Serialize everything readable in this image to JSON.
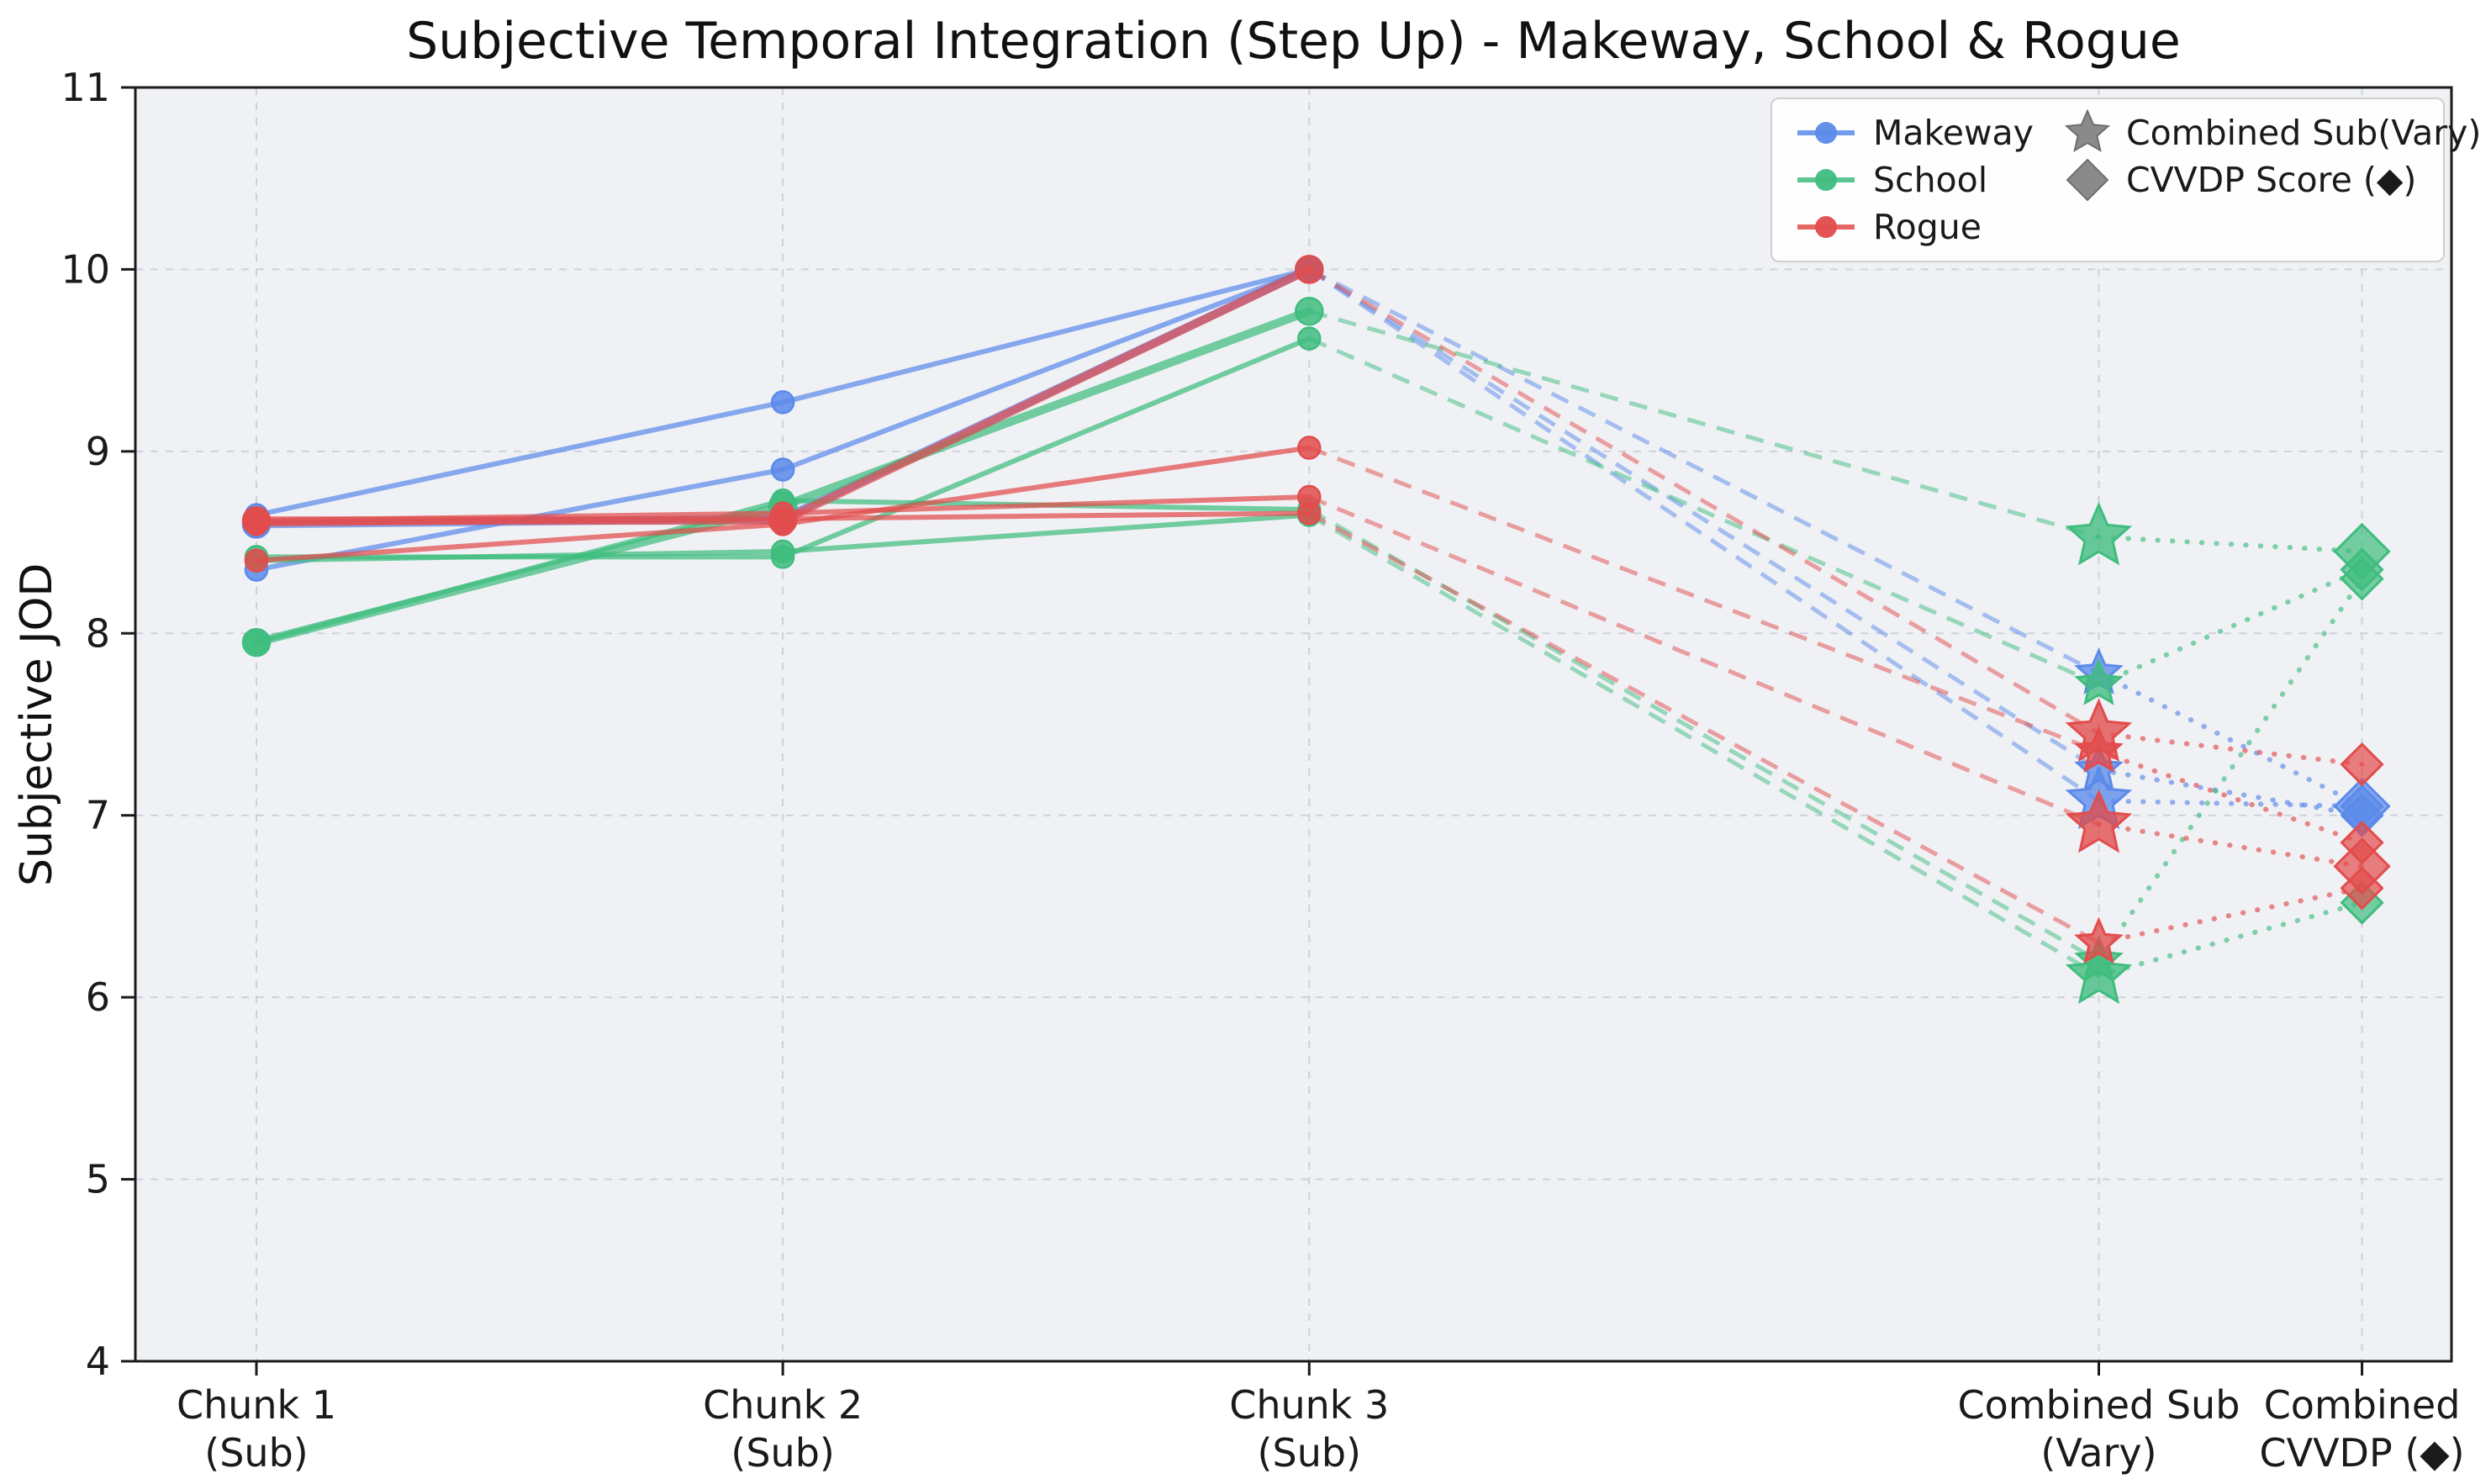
{
  "chart_data": {
    "type": "line",
    "title": "Subjective Temporal Integration (Step Up) - Makeway, School & Rogue",
    "ylabel": "Subjective JOD",
    "ylim": [
      4,
      11
    ],
    "yticks": [
      4,
      5,
      6,
      7,
      8,
      9,
      10,
      11
    ],
    "x_positions": [
      0,
      1,
      2,
      3.5,
      4
    ],
    "xlim": [
      -0.23,
      4.17
    ],
    "xtick_labels": [
      [
        "Chunk 1",
        "(Sub)"
      ],
      [
        "Chunk 2",
        "(Sub)"
      ],
      [
        "Chunk 3",
        "(Sub)"
      ],
      [
        "Combined Sub",
        "(Vary)"
      ],
      [
        "Combined",
        "CVVDP (◆)"
      ]
    ],
    "grid": true,
    "plot_background": "#f0f1f5",
    "grid_color": "#cdd1da",
    "legend": {
      "position": "upper right",
      "series_entries": [
        {
          "label": "Makeway",
          "color": "#5b8aea",
          "marker": "circle-line"
        },
        {
          "label": "School",
          "color": "#3fbd7e",
          "marker": "circle-line"
        },
        {
          "label": "Rogue",
          "color": "#e24c4c",
          "marker": "circle-line"
        }
      ],
      "marker_entries": [
        {
          "label": "Combined Sub(Vary)",
          "marker": "star",
          "color": "#8a8a8a"
        },
        {
          "label": "CVVDP Score (◆)",
          "marker": "diamond",
          "color": "#8a8a8a"
        }
      ]
    },
    "series": [
      {
        "name": "Makeway",
        "color": "#5b8aea",
        "lines": [
          {
            "chunks": [
              8.65,
              9.27,
              10.0
            ],
            "combined_sub": 7.78,
            "cvvdp": 7.05,
            "thick": false,
            "big_star": false,
            "big_diamond": false
          },
          {
            "chunks": [
              8.35,
              8.9,
              10.0
            ],
            "combined_sub": 7.25,
            "cvvdp": 7.0,
            "thick": false,
            "big_star": false,
            "big_diamond": false
          },
          {
            "chunks": [
              8.6,
              8.63,
              10.0
            ],
            "combined_sub": 7.08,
            "cvvdp": 7.05,
            "thick": true,
            "big_star": true,
            "big_diamond": true
          }
        ]
      },
      {
        "name": "School",
        "color": "#3fbd7e",
        "lines": [
          {
            "chunks": [
              7.95,
              8.7,
              9.77
            ],
            "combined_sub": 8.53,
            "cvvdp": 8.45,
            "thick": true,
            "big_star": true,
            "big_diamond": true
          },
          {
            "chunks": [
              8.42,
              8.42,
              9.62
            ],
            "combined_sub": 7.72,
            "cvvdp": 8.35,
            "thick": false,
            "big_star": false,
            "big_diamond": false
          },
          {
            "chunks": [
              7.95,
              8.73,
              8.68
            ],
            "combined_sub": 6.2,
            "cvvdp": 8.3,
            "thick": false,
            "big_star": false,
            "big_diamond": false
          },
          {
            "chunks": [
              8.4,
              8.45,
              8.65
            ],
            "combined_sub": 6.12,
            "cvvdp": 6.52,
            "thick": false,
            "big_star": true,
            "big_diamond": false
          }
        ]
      },
      {
        "name": "Rogue",
        "color": "#e24c4c",
        "lines": [
          {
            "chunks": [
              8.62,
              8.62,
              10.0
            ],
            "combined_sub": 7.45,
            "cvvdp": 7.28,
            "thick": true,
            "big_star": true,
            "big_diamond": false
          },
          {
            "chunks": [
              8.4,
              8.6,
              9.02
            ],
            "combined_sub": 7.35,
            "cvvdp": 6.85,
            "thick": false,
            "big_star": false,
            "big_diamond": false
          },
          {
            "chunks": [
              8.62,
              8.66,
              8.75
            ],
            "combined_sub": 6.95,
            "cvvdp": 6.72,
            "thick": false,
            "big_star": true,
            "big_diamond": true
          },
          {
            "chunks": [
              8.6,
              8.63,
              8.66
            ],
            "combined_sub": 6.3,
            "cvvdp": 6.6,
            "thick": false,
            "big_star": false,
            "big_diamond": false
          }
        ]
      }
    ]
  }
}
